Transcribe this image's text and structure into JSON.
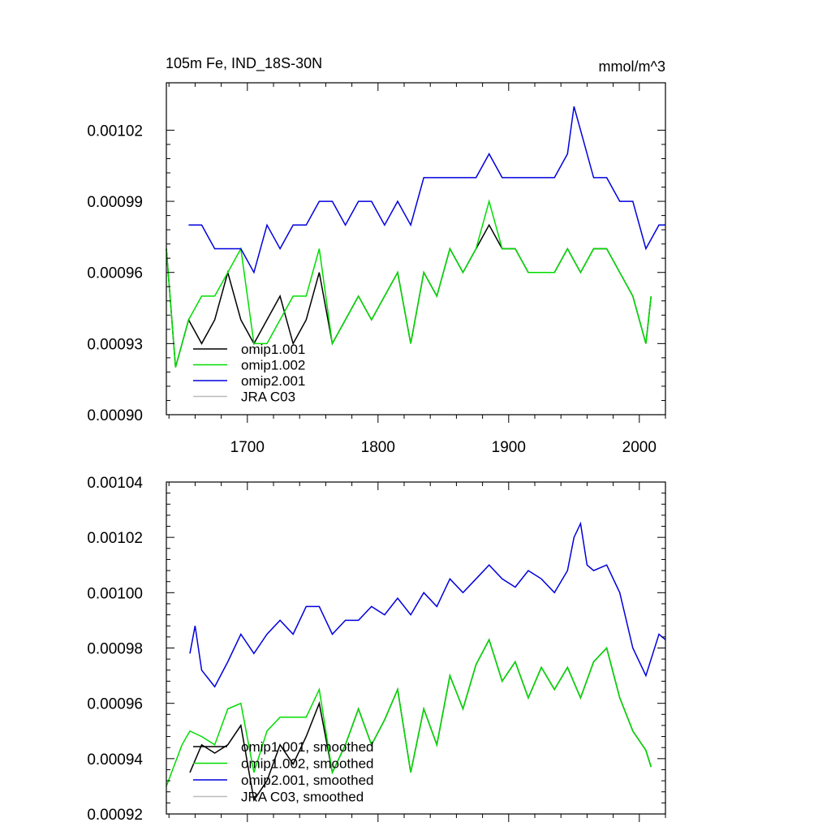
{
  "chart_data": [
    {
      "type": "line",
      "title": "105m Fe, IND_18S-30N",
      "units": "mmol/m^3",
      "xlim": [
        1638,
        2020
      ],
      "ylim": [
        0.0009,
        0.00104
      ],
      "x_ticks": [
        1700,
        1800,
        1900,
        2000
      ],
      "x_tick_labels": [
        "1700",
        "1800",
        "1900",
        "2000"
      ],
      "y_ticks": [
        0.0009,
        0.00093,
        0.00096,
        0.00099,
        0.00102
      ],
      "y_tick_labels": [
        "0.00090",
        "0.00093",
        "0.00096",
        "0.00099",
        "0.00102"
      ],
      "legend_position": "bottom-left",
      "series": [
        {
          "name": "omip1.001",
          "color": "#000000",
          "x": [
            1638,
            1645,
            1655,
            1665,
            1675,
            1685,
            1695,
            1705,
            1715,
            1725,
            1735,
            1745,
            1755,
            1765,
            1775,
            1785,
            1795,
            1805,
            1815,
            1825,
            1835,
            1845,
            1855,
            1865,
            1875,
            1885,
            1895,
            1905,
            1915,
            1925,
            1935,
            1945,
            1955,
            1965,
            1975,
            1985,
            1995,
            2005,
            2009
          ],
          "values": [
            0.00097,
            0.00092,
            0.00094,
            0.00093,
            0.00094,
            0.00096,
            0.00094,
            0.00093,
            0.00094,
            0.00095,
            0.00093,
            0.00094,
            0.00096,
            0.00093,
            0.00094,
            0.00095,
            0.00094,
            0.00095,
            0.00096,
            0.00093,
            0.00096,
            0.00095,
            0.00097,
            0.00096,
            0.00097,
            0.00098,
            0.00097,
            0.00097,
            0.00096,
            0.00096,
            0.00096,
            0.00097,
            0.00096,
            0.00097,
            0.00097,
            0.00096,
            0.00095,
            0.00093,
            0.00095
          ]
        },
        {
          "name": "omip1.002",
          "color": "#00dd00",
          "x": [
            1638,
            1645,
            1655,
            1665,
            1675,
            1685,
            1695,
            1705,
            1715,
            1725,
            1735,
            1745,
            1755,
            1765,
            1775,
            1785,
            1795,
            1805,
            1815,
            1825,
            1835,
            1845,
            1855,
            1865,
            1875,
            1885,
            1895,
            1905,
            1915,
            1925,
            1935,
            1945,
            1955,
            1965,
            1975,
            1985,
            1995,
            2005,
            2009
          ],
          "values": [
            0.00097,
            0.00092,
            0.00094,
            0.00095,
            0.00095,
            0.00096,
            0.00097,
            0.00093,
            0.00093,
            0.00094,
            0.00095,
            0.00095,
            0.00097,
            0.00093,
            0.00094,
            0.00095,
            0.00094,
            0.00095,
            0.00096,
            0.00093,
            0.00096,
            0.00095,
            0.00097,
            0.00096,
            0.00097,
            0.00099,
            0.00097,
            0.00097,
            0.00096,
            0.00096,
            0.00096,
            0.00097,
            0.00096,
            0.00097,
            0.00097,
            0.00096,
            0.00095,
            0.00093,
            0.00095
          ]
        },
        {
          "name": "omip2.001",
          "color": "#0000dd",
          "x": [
            1655,
            1665,
            1675,
            1685,
            1695,
            1705,
            1715,
            1725,
            1735,
            1745,
            1755,
            1765,
            1775,
            1785,
            1795,
            1805,
            1815,
            1825,
            1835,
            1845,
            1855,
            1865,
            1875,
            1885,
            1895,
            1905,
            1915,
            1925,
            1935,
            1945,
            1950,
            1955,
            1965,
            1975,
            1985,
            1995,
            2005,
            2015,
            2020
          ],
          "values": [
            0.00098,
            0.00098,
            0.00097,
            0.00097,
            0.00097,
            0.00096,
            0.00098,
            0.00097,
            0.00098,
            0.00098,
            0.00099,
            0.00099,
            0.00098,
            0.00099,
            0.00099,
            0.00098,
            0.00099,
            0.00098,
            0.001,
            0.001,
            0.001,
            0.001,
            0.001,
            0.00101,
            0.001,
            0.001,
            0.001,
            0.001,
            0.001,
            0.00101,
            0.00103,
            0.00102,
            0.001,
            0.001,
            0.00099,
            0.00099,
            0.00097,
            0.00098,
            0.00098
          ]
        },
        {
          "name": "JRA C03",
          "color": "#bbbbbb",
          "x": [],
          "values": []
        }
      ]
    },
    {
      "type": "line",
      "title": "",
      "units": "",
      "xlim": [
        1638,
        2020
      ],
      "ylim": [
        0.00092,
        0.00104
      ],
      "x_ticks": [
        1700,
        1800,
        1900,
        2000
      ],
      "x_tick_labels": [],
      "y_ticks": [
        0.00092,
        0.00094,
        0.00096,
        0.00098,
        0.001,
        0.00102,
        0.00104
      ],
      "y_tick_labels": [
        "0.00092",
        "0.00094",
        "0.00096",
        "0.00098",
        "0.00100",
        "0.00102",
        "0.00104"
      ],
      "legend_position": "bottom-left",
      "series": [
        {
          "name": "omip1.001, smoothed",
          "color": "#000000",
          "x": [
            1656,
            1665,
            1675,
            1685,
            1695,
            1705,
            1715,
            1725,
            1735,
            1745,
            1755,
            1765,
            1775,
            1785,
            1795,
            1805,
            1815,
            1825,
            1835,
            1845,
            1855,
            1865,
            1875,
            1885,
            1895,
            1905,
            1915,
            1925,
            1935,
            1945,
            1955,
            1965,
            1975,
            1985,
            1995,
            2005,
            2009
          ],
          "values": [
            0.000935,
            0.000945,
            0.000942,
            0.000945,
            0.000952,
            0.000925,
            0.000932,
            0.000945,
            0.000938,
            0.000948,
            0.00096,
            0.000935,
            0.000945,
            0.000958,
            0.000945,
            0.000954,
            0.000965,
            0.000935,
            0.000958,
            0.000945,
            0.00097,
            0.000958,
            0.000974,
            0.000983,
            0.000968,
            0.000975,
            0.000962,
            0.000973,
            0.000965,
            0.000973,
            0.000962,
            0.000975,
            0.00098,
            0.000962,
            0.00095,
            0.000943,
            0.000937
          ]
        },
        {
          "name": "omip1.002, smoothed",
          "color": "#00dd00",
          "x": [
            1638,
            1650,
            1656,
            1665,
            1675,
            1685,
            1695,
            1705,
            1715,
            1725,
            1735,
            1745,
            1755,
            1765,
            1775,
            1785,
            1795,
            1805,
            1815,
            1825,
            1835,
            1845,
            1855,
            1865,
            1875,
            1885,
            1895,
            1905,
            1915,
            1925,
            1935,
            1945,
            1955,
            1965,
            1975,
            1985,
            1995,
            2005,
            2009
          ],
          "values": [
            0.00093,
            0.000945,
            0.00095,
            0.000948,
            0.000945,
            0.000958,
            0.00096,
            0.000935,
            0.00095,
            0.000955,
            0.000955,
            0.000955,
            0.000965,
            0.000935,
            0.000945,
            0.000958,
            0.000945,
            0.000954,
            0.000965,
            0.000935,
            0.000958,
            0.000945,
            0.00097,
            0.000958,
            0.000974,
            0.000983,
            0.000968,
            0.000975,
            0.000962,
            0.000973,
            0.000965,
            0.000973,
            0.000962,
            0.000975,
            0.00098,
            0.000962,
            0.00095,
            0.000943,
            0.000937
          ]
        },
        {
          "name": "omip2.001, smoothed",
          "color": "#0000dd",
          "x": [
            1656,
            1660,
            1665,
            1675,
            1685,
            1695,
            1705,
            1715,
            1725,
            1735,
            1745,
            1755,
            1765,
            1775,
            1785,
            1795,
            1805,
            1815,
            1825,
            1835,
            1845,
            1855,
            1865,
            1875,
            1885,
            1895,
            1905,
            1915,
            1925,
            1935,
            1945,
            1950,
            1955,
            1960,
            1965,
            1975,
            1985,
            1995,
            2005,
            2015,
            2020
          ],
          "values": [
            0.000978,
            0.000988,
            0.000972,
            0.000966,
            0.000975,
            0.000985,
            0.000978,
            0.000985,
            0.00099,
            0.000985,
            0.000995,
            0.000995,
            0.000985,
            0.00099,
            0.00099,
            0.000995,
            0.000992,
            0.000998,
            0.000992,
            0.001,
            0.000995,
            0.001005,
            0.001,
            0.001005,
            0.00101,
            0.001005,
            0.001002,
            0.001008,
            0.001005,
            0.001,
            0.001008,
            0.00102,
            0.001025,
            0.00101,
            0.001008,
            0.00101,
            0.001,
            0.00098,
            0.00097,
            0.000985,
            0.000983
          ]
        },
        {
          "name": "JRA C03, smoothed",
          "color": "#bbbbbb",
          "x": [],
          "values": []
        }
      ]
    }
  ]
}
